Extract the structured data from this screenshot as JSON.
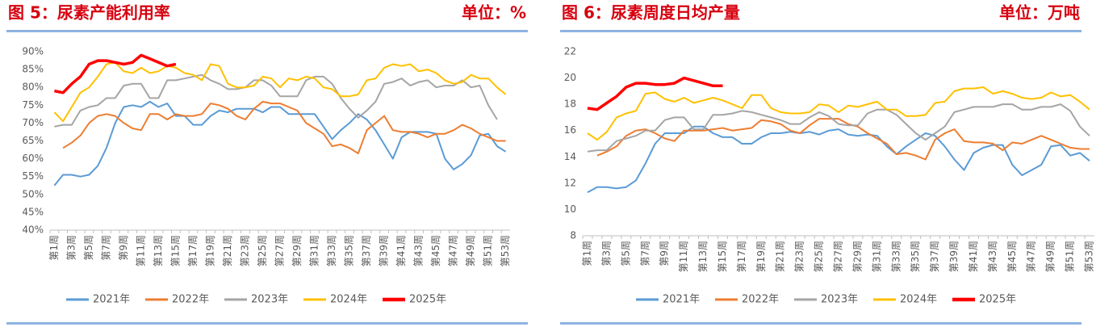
{
  "chart_data": [
    {
      "type": "line",
      "title": "图 5：尿素产能利用率",
      "unit": "单位：%",
      "categories": [
        "第1周",
        null,
        "第3周",
        null,
        "第5周",
        null,
        "第7周",
        null,
        "第9周",
        null,
        "第11周",
        null,
        "第13周",
        null,
        "第15周",
        null,
        "第17周",
        null,
        "第19周",
        null,
        "第21周",
        null,
        "第23周",
        null,
        "第25周",
        null,
        "第27周",
        null,
        "第29周",
        null,
        "第31周",
        null,
        "第33周",
        null,
        "第35周",
        null,
        "第37周",
        null,
        "第39周",
        null,
        "第41周",
        null,
        "第43周",
        null,
        "第45周",
        null,
        "第47周",
        null,
        "第49周",
        null,
        "第51周",
        null,
        "第53周"
      ],
      "ylim": [
        40,
        90
      ],
      "yticks": [
        {
          "value": 40,
          "label": "40%"
        },
        {
          "value": 45,
          "label": "45%"
        },
        {
          "value": 50,
          "label": "50%"
        },
        {
          "value": 55,
          "label": "55%"
        },
        {
          "value": 60,
          "label": "60%"
        },
        {
          "value": 65,
          "label": "65%"
        },
        {
          "value": 70,
          "label": "70%"
        },
        {
          "value": 75,
          "label": "75%"
        },
        {
          "value": 80,
          "label": "80%"
        },
        {
          "value": 85,
          "label": "85%"
        },
        {
          "value": 90,
          "label": "90%"
        }
      ],
      "grid": false,
      "series": [
        {
          "name": "2021年",
          "color": "#5b9bd5",
          "values": [
            52.5,
            55.5,
            55.5,
            55,
            55.5,
            58,
            63,
            70,
            74.5,
            75,
            74.5,
            76,
            74.5,
            75.5,
            72,
            72,
            69.5,
            69.5,
            72,
            73.5,
            73,
            74,
            74,
            74,
            73,
            74.5,
            74.5,
            72.5,
            72.5,
            72.5,
            72.5,
            69,
            65.5,
            68,
            70,
            72.5,
            71,
            68,
            64,
            60,
            66,
            67.5,
            67.5,
            67.5,
            67,
            60,
            57,
            58.5,
            61,
            66.5,
            67,
            63.5,
            62
          ]
        },
        {
          "name": "2022年",
          "color": "#ed7d31",
          "values": [
            null,
            63,
            64.5,
            66.5,
            70,
            72,
            72.5,
            72,
            70,
            68.5,
            68,
            72.5,
            72.5,
            71,
            72.5,
            72,
            72,
            72.5,
            75.5,
            75,
            74,
            72,
            71,
            74,
            76,
            75.5,
            75.5,
            74.5,
            73.5,
            70,
            68.5,
            67,
            63.5,
            64,
            63,
            61.5,
            68,
            70,
            72,
            68,
            67.5,
            67.5,
            67,
            66,
            67,
            67,
            68,
            69.5,
            68.5,
            67,
            66,
            65,
            65
          ]
        },
        {
          "name": "2023年",
          "color": "#a5a5a5",
          "values": [
            69,
            69.5,
            69.5,
            73.5,
            74.5,
            75,
            77,
            77,
            80.5,
            81,
            81,
            77,
            77,
            82,
            82,
            82.5,
            83,
            83.5,
            82,
            81,
            79.5,
            79.5,
            80,
            82,
            82,
            80.5,
            77.5,
            77.5,
            77.5,
            82,
            83,
            83,
            81,
            77,
            74,
            71.5,
            73.5,
            76,
            81,
            81.5,
            82.5,
            80.5,
            81.5,
            82,
            80,
            80.5,
            80.5,
            82,
            80,
            80.5,
            75,
            71,
            null
          ]
        },
        {
          "name": "2024年",
          "color": "#ffc000",
          "values": [
            73,
            70.5,
            74.5,
            78.5,
            80,
            83,
            86.5,
            87,
            84.5,
            84,
            85.5,
            84,
            84.5,
            86,
            85.5,
            84,
            83.5,
            82,
            86.5,
            86,
            81,
            80,
            80,
            80.5,
            83,
            82.5,
            80,
            82.5,
            82,
            83,
            82.5,
            80,
            79.5,
            77.5,
            77.5,
            78,
            82,
            82.5,
            85.5,
            86.5,
            86,
            86.5,
            84.5,
            85,
            84,
            82,
            81,
            81.5,
            83.5,
            82.5,
            82.5,
            80,
            78
          ]
        },
        {
          "name": "2025年",
          "color": "#ff0000",
          "values": [
            79,
            78.5,
            81,
            83,
            86.5,
            87.5,
            87.5,
            87,
            86.5,
            87,
            89,
            88,
            87,
            86,
            86.5,
            null,
            null,
            null,
            null,
            null,
            null,
            null,
            null,
            null,
            null,
            null,
            null,
            null,
            null,
            null,
            null,
            null,
            null,
            null,
            null,
            null,
            null,
            null,
            null,
            null,
            null,
            null,
            null,
            null,
            null,
            null,
            null,
            null,
            null,
            null,
            null,
            null,
            null
          ]
        }
      ]
    },
    {
      "type": "line",
      "title": "图 6：尿素周度日均产量",
      "unit": "单位：万吨",
      "categories": [
        "第1周",
        null,
        "第3周",
        null,
        "第5周",
        null,
        "第7周",
        null,
        "第9周",
        null,
        "第11周",
        null,
        "第13周",
        null,
        "第15周",
        null,
        "第17周",
        null,
        "第19周",
        null,
        "第21周",
        null,
        "第23周",
        null,
        "第25周",
        null,
        "第27周",
        null,
        "第29周",
        null,
        "第31周",
        null,
        "第33周",
        null,
        "第35周",
        null,
        "第37周",
        null,
        "第39周",
        null,
        "第41周",
        null,
        "第43周",
        null,
        "第45周",
        null,
        "第47周",
        null,
        "第49周",
        null,
        "第51周",
        null,
        "第53周"
      ],
      "ylim": [
        8,
        22
      ],
      "yticks": [
        8,
        10,
        12,
        14,
        16,
        18,
        20,
        22
      ],
      "grid": false,
      "series": [
        {
          "name": "2021年",
          "color": "#5b9bd5",
          "values": [
            11.3,
            11.7,
            11.7,
            11.6,
            11.7,
            12.2,
            13.5,
            15,
            15.8,
            15.8,
            15.8,
            16.3,
            16.3,
            15.8,
            15.5,
            15.5,
            15,
            15,
            15.5,
            15.8,
            15.8,
            15.9,
            15.8,
            15.9,
            15.7,
            16,
            16.1,
            15.7,
            15.6,
            15.7,
            15.6,
            14.8,
            14.2,
            14.8,
            15.3,
            15.8,
            15.6,
            14.8,
            13.8,
            13,
            14.3,
            14.7,
            14.9,
            14.9,
            13.4,
            12.6,
            13,
            13.4,
            14.8,
            14.9,
            14.1,
            14.3,
            13.7
          ]
        },
        {
          "name": "2022年",
          "color": "#ed7d31",
          "values": [
            null,
            14.1,
            14.4,
            14.8,
            15.6,
            16,
            16.1,
            15.8,
            15.4,
            15.2,
            16,
            16,
            16,
            16.1,
            16.2,
            16,
            16.1,
            16.2,
            16.8,
            16.7,
            16.5,
            16,
            15.8,
            16.4,
            16.9,
            16.9,
            16.9,
            16.5,
            16.3,
            15.8,
            15.4,
            15,
            14.2,
            14.3,
            14.1,
            13.8,
            15.3,
            15.8,
            16.1,
            15.2,
            15.1,
            15.1,
            15,
            14.5,
            15.1,
            15,
            15.3,
            15.6,
            15.3,
            15,
            14.7,
            14.6,
            14.6
          ]
        },
        {
          "name": "2023年",
          "color": "#a5a5a5",
          "values": [
            14.4,
            14.5,
            14.5,
            15.2,
            15.4,
            15.6,
            16,
            16,
            16.8,
            17,
            17,
            16.1,
            16.1,
            17.2,
            17.2,
            17.3,
            17.5,
            17.4,
            17.2,
            17,
            16.8,
            16.5,
            16.5,
            17,
            17.4,
            17.1,
            16.5,
            16.4,
            16.4,
            17.3,
            17.6,
            17.6,
            17.2,
            16.5,
            15.8,
            15.3,
            15.8,
            16.3,
            17.4,
            17.6,
            17.8,
            17.8,
            17.8,
            18,
            18,
            17.6,
            17.6,
            17.8,
            17.8,
            18,
            17.5,
            16.3,
            15.6
          ]
        },
        {
          "name": "2024年",
          "color": "#ffc000",
          "values": [
            15.8,
            15.3,
            15.9,
            17,
            17.3,
            17.5,
            18.8,
            18.9,
            18.4,
            18.2,
            18.5,
            18.1,
            18.3,
            18.5,
            18.3,
            18,
            17.7,
            18.7,
            18.7,
            17.7,
            17.4,
            17.3,
            17.3,
            17.4,
            18,
            17.9,
            17.4,
            17.9,
            17.8,
            18,
            18.2,
            17.6,
            17.6,
            17.1,
            17.1,
            17.2,
            18.1,
            18.2,
            19,
            19.2,
            19.2,
            19.3,
            18.8,
            19,
            18.8,
            18.5,
            18.4,
            18.5,
            18.9,
            18.6,
            18.7,
            18.2,
            17.6
          ]
        },
        {
          "name": "2025年",
          "color": "#ff0000",
          "values": [
            17.7,
            17.6,
            18.1,
            18.6,
            19.3,
            19.6,
            19.6,
            19.5,
            19.5,
            19.6,
            20,
            19.8,
            19.6,
            19.4,
            19.4,
            null,
            null,
            null,
            null,
            null,
            null,
            null,
            null,
            null,
            null,
            null,
            null,
            null,
            null,
            null,
            null,
            null,
            null,
            null,
            null,
            null,
            null,
            null,
            null,
            null,
            null,
            null,
            null,
            null,
            null,
            null,
            null,
            null,
            null,
            null,
            null,
            null,
            null
          ]
        }
      ]
    }
  ]
}
